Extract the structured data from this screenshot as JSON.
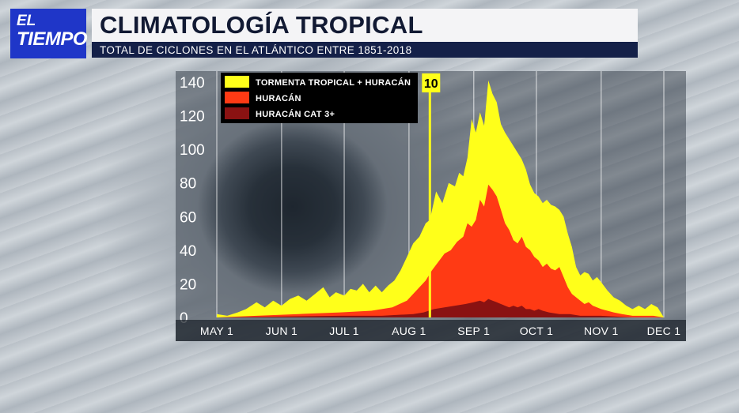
{
  "logo": {
    "line1": "EL",
    "line2": "TIEMPO"
  },
  "header": {
    "title": "CLIMATOLOGÍA TROPICAL",
    "subtitle": "TOTAL DE CICLONES EN EL ATLÁNTICO ENTRE 1851-2018"
  },
  "colors": {
    "storms": "#ffff1a",
    "hurricanes": "#ff3a14",
    "major": "#8a1212",
    "marker": "#ffff1a",
    "logo_bg": "#1f36c8",
    "subtitle_bg": "#142048"
  },
  "chart_data": {
    "type": "area",
    "title": "",
    "xlabel": "",
    "ylabel": "",
    "ylim": [
      0,
      140
    ],
    "y_ticks": [
      "140",
      "120",
      "100",
      "80",
      "60",
      "40",
      "20",
      "0"
    ],
    "x_ticks": [
      "MAY 1",
      "JUN 1",
      "JUL 1",
      "AUG 1",
      "SEP 1",
      "OCT 1",
      "NOV 1",
      "DEC 1"
    ],
    "x_tick_days": [
      1,
      32,
      62,
      93,
      124,
      154,
      185,
      215
    ],
    "grid": true,
    "legend_position": "top-left",
    "marker": {
      "label": "10",
      "day": 103
    },
    "series": [
      {
        "name": "TORMENTA TROPICAL + HURACÁN",
        "points": [
          [
            1,
            2
          ],
          [
            6,
            1
          ],
          [
            11,
            3
          ],
          [
            15,
            5
          ],
          [
            20,
            9
          ],
          [
            24,
            6
          ],
          [
            28,
            10
          ],
          [
            32,
            7
          ],
          [
            36,
            11
          ],
          [
            40,
            13
          ],
          [
            44,
            10
          ],
          [
            48,
            14
          ],
          [
            52,
            18
          ],
          [
            55,
            12
          ],
          [
            58,
            15
          ],
          [
            62,
            13
          ],
          [
            65,
            17
          ],
          [
            68,
            16
          ],
          [
            71,
            20
          ],
          [
            74,
            15
          ],
          [
            77,
            19
          ],
          [
            80,
            15
          ],
          [
            83,
            19
          ],
          [
            86,
            22
          ],
          [
            89,
            28
          ],
          [
            92,
            36
          ],
          [
            95,
            44
          ],
          [
            98,
            48
          ],
          [
            101,
            56
          ],
          [
            103,
            58
          ],
          [
            106,
            75
          ],
          [
            109,
            68
          ],
          [
            112,
            80
          ],
          [
            115,
            78
          ],
          [
            117,
            86
          ],
          [
            119,
            84
          ],
          [
            121,
            95
          ],
          [
            123,
            118
          ],
          [
            125,
            110
          ],
          [
            127,
            122
          ],
          [
            129,
            114
          ],
          [
            131,
            141
          ],
          [
            133,
            133
          ],
          [
            135,
            128
          ],
          [
            137,
            115
          ],
          [
            139,
            110
          ],
          [
            141,
            106
          ],
          [
            143,
            102
          ],
          [
            145,
            98
          ],
          [
            147,
            94
          ],
          [
            149,
            88
          ],
          [
            151,
            79
          ],
          [
            153,
            74
          ],
          [
            155,
            72
          ],
          [
            157,
            68
          ],
          [
            159,
            70
          ],
          [
            161,
            67
          ],
          [
            163,
            66
          ],
          [
            165,
            64
          ],
          [
            167,
            60
          ],
          [
            169,
            50
          ],
          [
            171,
            42
          ],
          [
            173,
            30
          ],
          [
            175,
            25
          ],
          [
            177,
            27
          ],
          [
            179,
            26
          ],
          [
            181,
            22
          ],
          [
            183,
            24
          ],
          [
            185,
            21
          ],
          [
            188,
            16
          ],
          [
            191,
            12
          ],
          [
            194,
            10
          ],
          [
            197,
            7
          ],
          [
            200,
            5
          ],
          [
            203,
            7
          ],
          [
            206,
            5
          ],
          [
            209,
            8
          ],
          [
            212,
            6
          ],
          [
            215,
            0
          ]
        ]
      },
      {
        "name": "HURACÁN",
        "points": [
          [
            1,
            0
          ],
          [
            20,
            1
          ],
          [
            40,
            2
          ],
          [
            60,
            3
          ],
          [
            75,
            4
          ],
          [
            85,
            6
          ],
          [
            92,
            10
          ],
          [
            95,
            14
          ],
          [
            98,
            18
          ],
          [
            101,
            22
          ],
          [
            104,
            28
          ],
          [
            107,
            33
          ],
          [
            110,
            38
          ],
          [
            113,
            40
          ],
          [
            116,
            45
          ],
          [
            119,
            48
          ],
          [
            121,
            56
          ],
          [
            123,
            54
          ],
          [
            125,
            58
          ],
          [
            127,
            70
          ],
          [
            129,
            66
          ],
          [
            131,
            79
          ],
          [
            133,
            76
          ],
          [
            135,
            72
          ],
          [
            137,
            64
          ],
          [
            139,
            56
          ],
          [
            141,
            52
          ],
          [
            143,
            46
          ],
          [
            145,
            44
          ],
          [
            147,
            48
          ],
          [
            149,
            42
          ],
          [
            151,
            40
          ],
          [
            153,
            36
          ],
          [
            155,
            34
          ],
          [
            157,
            30
          ],
          [
            159,
            32
          ],
          [
            161,
            29
          ],
          [
            163,
            28
          ],
          [
            165,
            30
          ],
          [
            167,
            24
          ],
          [
            169,
            18
          ],
          [
            171,
            14
          ],
          [
            173,
            12
          ],
          [
            175,
            10
          ],
          [
            177,
            8
          ],
          [
            179,
            9
          ],
          [
            181,
            7
          ],
          [
            183,
            6
          ],
          [
            185,
            5
          ],
          [
            188,
            4
          ],
          [
            191,
            3
          ],
          [
            195,
            2
          ],
          [
            200,
            1
          ],
          [
            210,
            1
          ],
          [
            215,
            0
          ]
        ]
      },
      {
        "name": "HURACÁN CAT 3+",
        "points": [
          [
            1,
            0
          ],
          [
            60,
            1
          ],
          [
            80,
            1
          ],
          [
            95,
            2
          ],
          [
            100,
            3
          ],
          [
            105,
            5
          ],
          [
            110,
            6
          ],
          [
            115,
            7
          ],
          [
            120,
            8
          ],
          [
            124,
            9
          ],
          [
            127,
            10
          ],
          [
            129,
            9
          ],
          [
            131,
            11
          ],
          [
            133,
            10
          ],
          [
            135,
            9
          ],
          [
            137,
            8
          ],
          [
            139,
            7
          ],
          [
            141,
            6
          ],
          [
            143,
            7
          ],
          [
            145,
            6
          ],
          [
            147,
            7
          ],
          [
            149,
            5
          ],
          [
            151,
            5
          ],
          [
            153,
            4
          ],
          [
            155,
            5
          ],
          [
            157,
            4
          ],
          [
            160,
            3
          ],
          [
            165,
            2
          ],
          [
            170,
            2
          ],
          [
            175,
            1
          ],
          [
            185,
            1
          ],
          [
            200,
            0
          ],
          [
            215,
            0
          ]
        ]
      }
    ]
  }
}
